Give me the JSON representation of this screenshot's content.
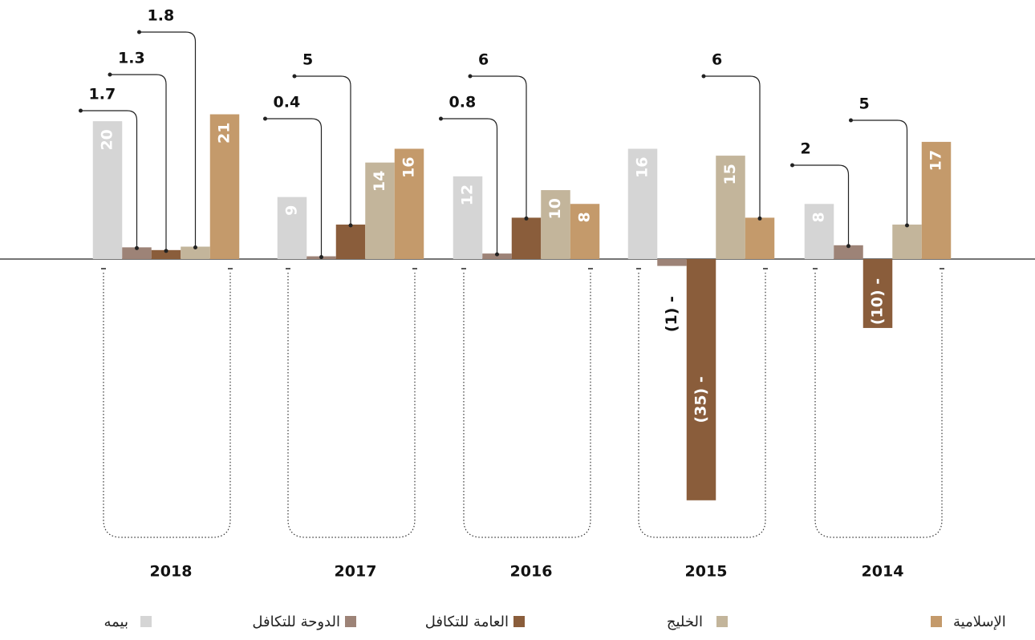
{
  "chart_data": {
    "type": "bar",
    "categories": [
      "2018",
      "2017",
      "2016",
      "2015",
      "2014"
    ],
    "series": [
      {
        "name": "بيمه",
        "color": "#d5d5d5",
        "values": [
          20,
          9,
          12,
          16,
          8
        ],
        "value_labels": [
          "20",
          "9",
          "12",
          "16",
          "8"
        ]
      },
      {
        "name": "الدوحة للتكافل",
        "color": "#9d8377",
        "values": [
          1.7,
          0.4,
          0.8,
          -1,
          2
        ],
        "value_labels": [
          "1.7",
          "0.4",
          "0.8",
          "(1) -",
          "2"
        ]
      },
      {
        "name": "العامة للتكافل",
        "color": "#8a5d3b",
        "values": [
          1.3,
          5,
          6,
          -35,
          -10
        ],
        "value_labels": [
          "1.3",
          "5",
          "6",
          "(35) -",
          "(10) -"
        ]
      },
      {
        "name": "الخليج",
        "color": "#c3b59b",
        "values": [
          1.8,
          14,
          10,
          15,
          5
        ],
        "value_labels": [
          "1.8",
          "14",
          "10",
          "15",
          "5"
        ]
      },
      {
        "name": "الإسلامية",
        "color": "#c49a6b",
        "values": [
          21,
          16,
          8,
          6,
          17
        ],
        "value_labels": [
          "21",
          "16",
          "8",
          "6",
          "17"
        ]
      }
    ],
    "ylim": [
      -37,
      37
    ],
    "legend": "bottom"
  }
}
